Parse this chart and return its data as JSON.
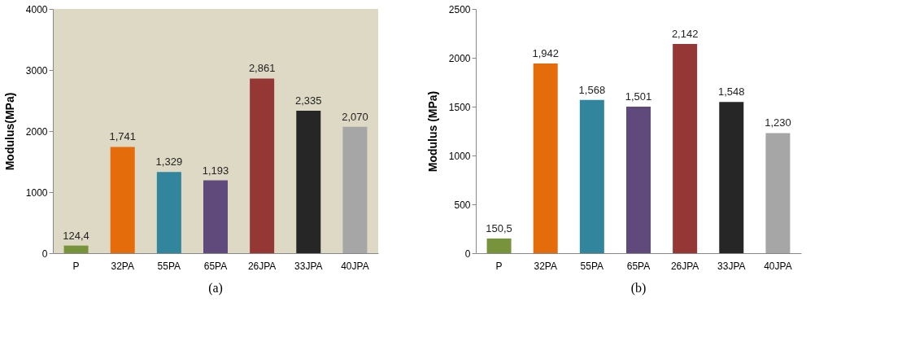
{
  "chart_data": [
    {
      "type": "bar",
      "title": "(a)",
      "ylabel": "Modulus(MPa)",
      "categories": [
        "P",
        "32PA",
        "55PA",
        "65PA",
        "26JPA",
        "33JPA",
        "40JPA"
      ],
      "values": [
        124.4,
        1741,
        1329,
        1193,
        2861,
        2335,
        2070
      ],
      "value_labels": [
        "124,4",
        "1,741",
        "1,329",
        "1,193",
        "2,861",
        "2,335",
        "2,070"
      ],
      "colors": [
        "#77933c",
        "#e46c0a",
        "#31859c",
        "#604a7b",
        "#953735",
        "#262626",
        "#a6a6a6"
      ],
      "ylim": [
        0,
        4000
      ],
      "yticks": [
        0,
        1000,
        2000,
        3000,
        4000
      ],
      "grid": false
    },
    {
      "type": "bar",
      "title": "(b)",
      "ylabel": "Modulus (MPa)",
      "categories": [
        "P",
        "32PA",
        "55PA",
        "65PA",
        "26JPA",
        "33JPA",
        "40JPA"
      ],
      "values": [
        150.5,
        1942,
        1568,
        1501,
        2142,
        1548,
        1230
      ],
      "value_labels": [
        "150,5",
        "1,942",
        "1,568",
        "1,501",
        "2,142",
        "1,548",
        "1,230"
      ],
      "colors": [
        "#77933c",
        "#e46c0a",
        "#31859c",
        "#604a7b",
        "#953735",
        "#262626",
        "#a6a6a6"
      ],
      "ylim": [
        0,
        2500
      ],
      "yticks": [
        0,
        500,
        1000,
        1500,
        2000,
        2500
      ],
      "grid": false
    }
  ]
}
